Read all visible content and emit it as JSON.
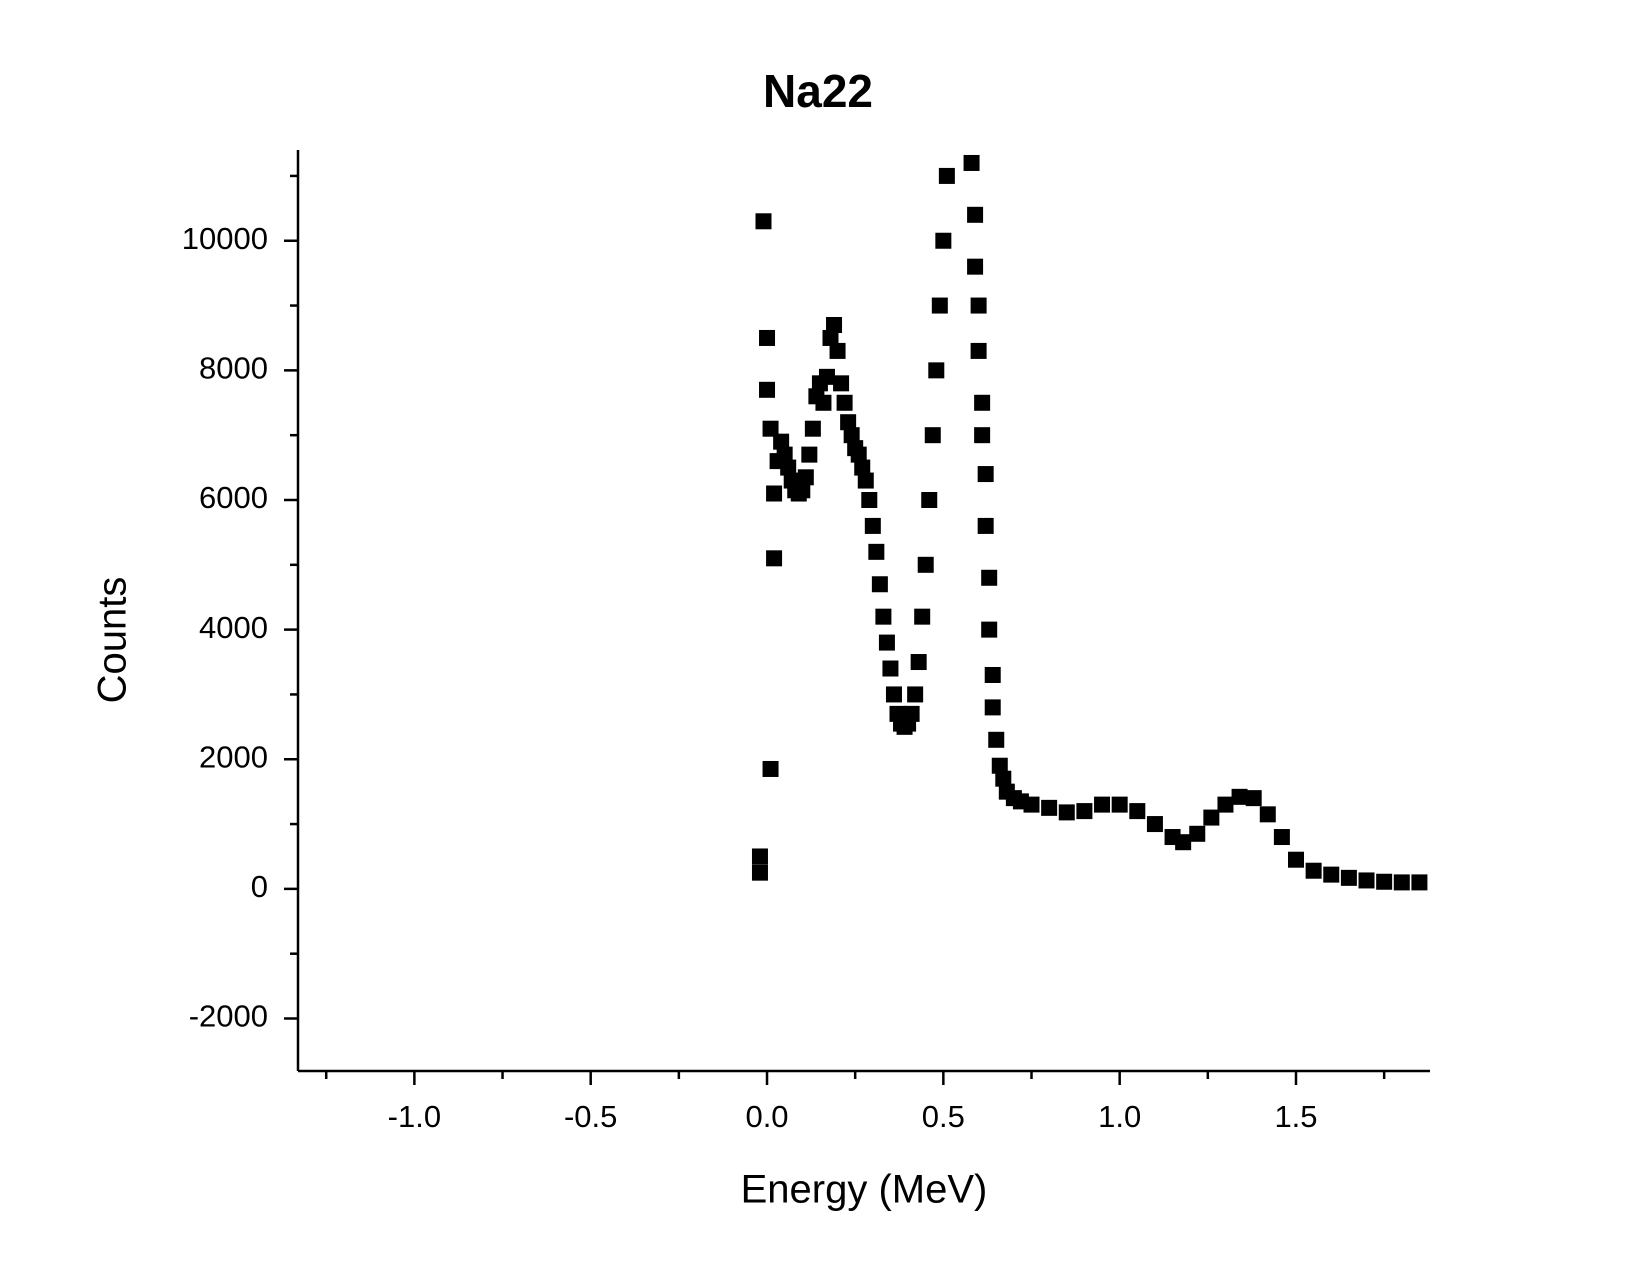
{
  "chart_data": {
    "type": "scatter",
    "title": "Na22",
    "x_label": "Energy (MeV)",
    "y_label": "Counts",
    "xlim": [
      -1.33,
      1.88
    ],
    "ylim": [
      -2810,
      11400
    ],
    "xticks": [
      {
        "value": -1,
        "label": "-1.0"
      },
      -0.5,
      {
        "value": 0,
        "label": "0.0"
      },
      0.5,
      {
        "value": 1,
        "label": "1.0"
      },
      1.5
    ],
    "yticks": [
      -2000,
      0,
      2000,
      4000,
      6000,
      8000,
      10000
    ],
    "xminorticks": [
      -1.25,
      -0.75,
      -0.25,
      0.25,
      0.75,
      1.25,
      1.75
    ],
    "yminorticks": [
      -1000,
      1000,
      3000,
      5000,
      7000,
      9000,
      11000
    ],
    "color": "#000000",
    "x": [
      -0.02,
      -0.02,
      -0.01,
      0.0,
      0.0,
      0.01,
      0.02,
      0.02,
      0.01,
      0.03,
      0.04,
      0.05,
      0.06,
      0.07,
      0.08,
      0.09,
      0.1,
      0.11,
      0.12,
      0.13,
      0.14,
      0.15,
      0.16,
      0.17,
      0.18,
      0.19,
      0.2,
      0.21,
      0.22,
      0.23,
      0.24,
      0.25,
      0.26,
      0.27,
      0.28,
      0.29,
      0.3,
      0.31,
      0.32,
      0.33,
      0.34,
      0.35,
      0.36,
      0.37,
      0.38,
      0.39,
      0.4,
      0.41,
      0.42,
      0.43,
      0.44,
      0.45,
      0.46,
      0.47,
      0.48,
      0.49,
      0.5,
      0.51,
      0.58,
      0.59,
      0.59,
      0.6,
      0.6,
      0.61,
      0.61,
      0.62,
      0.62,
      0.63,
      0.63,
      0.64,
      0.64,
      0.65,
      0.66,
      0.67,
      0.68,
      0.7,
      0.72,
      0.75,
      0.8,
      0.85,
      0.9,
      0.95,
      1.0,
      1.05,
      1.1,
      1.15,
      1.18,
      1.22,
      1.26,
      1.3,
      1.34,
      1.38,
      1.42,
      1.46,
      1.5,
      1.55,
      1.6,
      1.65,
      1.7,
      1.75,
      1.8,
      1.85
    ],
    "values": [
      250,
      500,
      10300,
      8500,
      7700,
      1850,
      5100,
      6100,
      7100,
      6600,
      6900,
      6700,
      6500,
      6300,
      6150,
      6100,
      6150,
      6350,
      6700,
      7100,
      7600,
      7800,
      7500,
      7900,
      8500,
      8700,
      8300,
      7800,
      7500,
      7200,
      7000,
      6800,
      6700,
      6500,
      6300,
      6000,
      5600,
      5200,
      4700,
      4200,
      3800,
      3400,
      3000,
      2700,
      2550,
      2500,
      2550,
      2700,
      3000,
      3500,
      4200,
      5000,
      6000,
      7000,
      8000,
      9000,
      10000,
      11000,
      11200,
      10400,
      9600,
      9000,
      8300,
      7500,
      7000,
      6400,
      5600,
      4800,
      4000,
      3300,
      2800,
      2300,
      1900,
      1700,
      1500,
      1400,
      1350,
      1300,
      1250,
      1180,
      1200,
      1300,
      1300,
      1200,
      1000,
      800,
      720,
      850,
      1100,
      1300,
      1420,
      1400,
      1150,
      800,
      450,
      280,
      220,
      170,
      130,
      110,
      100,
      100
    ]
  }
}
